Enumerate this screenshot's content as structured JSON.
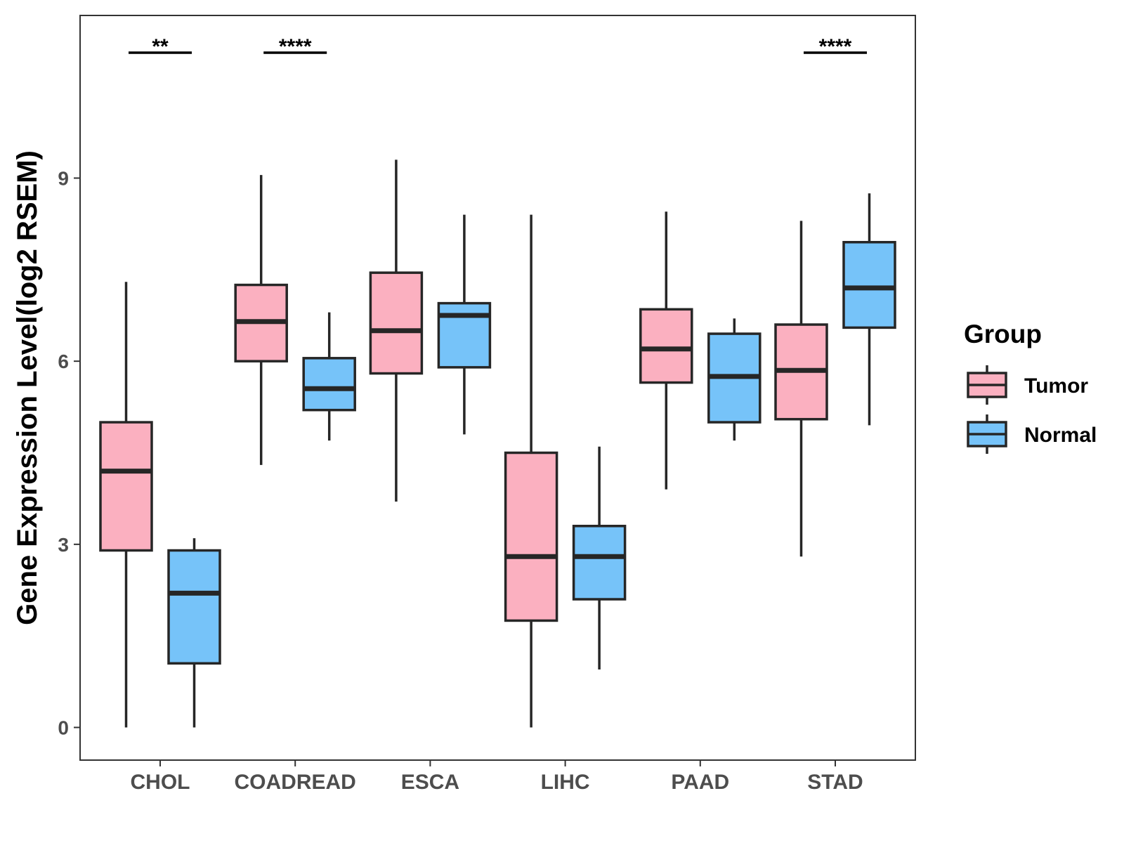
{
  "chart_data": {
    "type": "boxplot",
    "title": "",
    "xlabel": "",
    "ylabel": "Gene Expression Level(log2 RSEM)",
    "ylim": [
      -0.55,
      11.65
    ],
    "yticks": [
      0,
      3,
      6,
      9
    ],
    "grid": false,
    "categories": [
      "CHOL",
      "COADREAD",
      "ESCA",
      "LIHC",
      "PAAD",
      "STAD"
    ],
    "legend": {
      "title": "Group",
      "placement": "right",
      "entries": [
        {
          "name": "Tumor",
          "color": "#fbb0c0"
        },
        {
          "name": "Normal",
          "color": "#76c3f9"
        }
      ]
    },
    "series": [
      {
        "name": "Tumor",
        "color": "#fbb0c0",
        "boxes": [
          {
            "category": "CHOL",
            "whisker_low": 0.0,
            "q1": 2.9,
            "median": 4.2,
            "q3": 5.0,
            "whisker_high": 7.3
          },
          {
            "category": "COADREAD",
            "whisker_low": 4.3,
            "q1": 6.0,
            "median": 6.65,
            "q3": 7.25,
            "whisker_high": 9.05
          },
          {
            "category": "ESCA",
            "whisker_low": 3.7,
            "q1": 5.8,
            "median": 6.5,
            "q3": 7.45,
            "whisker_high": 9.3
          },
          {
            "category": "LIHC",
            "whisker_low": 0.0,
            "q1": 1.75,
            "median": 2.8,
            "q3": 4.5,
            "whisker_high": 8.4
          },
          {
            "category": "PAAD",
            "whisker_low": 3.9,
            "q1": 5.65,
            "median": 6.2,
            "q3": 6.85,
            "whisker_high": 8.45
          },
          {
            "category": "STAD",
            "whisker_low": 2.8,
            "q1": 5.05,
            "median": 5.85,
            "q3": 6.6,
            "whisker_high": 8.3
          }
        ]
      },
      {
        "name": "Normal",
        "color": "#76c3f9",
        "boxes": [
          {
            "category": "CHOL",
            "whisker_low": 0.0,
            "q1": 1.05,
            "median": 2.2,
            "q3": 2.9,
            "whisker_high": 3.1
          },
          {
            "category": "COADREAD",
            "whisker_low": 4.7,
            "q1": 5.2,
            "median": 5.55,
            "q3": 6.05,
            "whisker_high": 6.8
          },
          {
            "category": "ESCA",
            "whisker_low": 4.8,
            "q1": 5.9,
            "median": 6.75,
            "q3": 6.95,
            "whisker_high": 8.4
          },
          {
            "category": "LIHC",
            "whisker_low": 0.95,
            "q1": 2.1,
            "median": 2.8,
            "q3": 3.3,
            "whisker_high": 4.6
          },
          {
            "category": "PAAD",
            "whisker_low": 4.7,
            "q1": 5.0,
            "median": 5.75,
            "q3": 6.45,
            "whisker_high": 6.7
          },
          {
            "category": "STAD",
            "whisker_low": 4.95,
            "q1": 6.55,
            "median": 7.2,
            "q3": 7.95,
            "whisker_high": 8.75
          }
        ]
      }
    ],
    "significance": [
      {
        "category": "CHOL",
        "label": "**"
      },
      {
        "category": "COADREAD",
        "label": "****"
      },
      {
        "category": "STAD",
        "label": "****"
      }
    ]
  }
}
